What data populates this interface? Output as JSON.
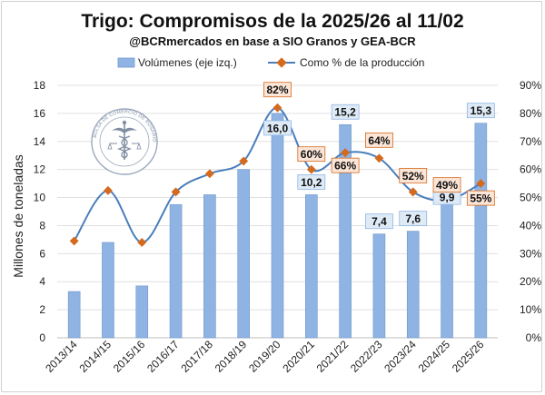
{
  "chart_data": {
    "type": "bar",
    "title": "Trigo: Compromisos de la 2025/26 al 11/02",
    "subtitle": "@BCRmercados en base a SIO Granos y GEA-BCR",
    "ylabel": "Millones de toneladas",
    "y2label": "",
    "ylim": [
      0,
      18
    ],
    "y2lim": [
      0,
      90
    ],
    "yticks": [
      "0",
      "2",
      "4",
      "6",
      "8",
      "10",
      "12",
      "14",
      "16",
      "18"
    ],
    "y2ticks": [
      "0%",
      "10%",
      "20%",
      "30%",
      "40%",
      "50%",
      "60%",
      "70%",
      "80%",
      "90%"
    ],
    "grid": true,
    "legend_position": "top",
    "categories": [
      "2013/14",
      "2014/15",
      "2015/16",
      "2016/17",
      "2017/18",
      "2018/19",
      "2019/20",
      "2020/21",
      "2021/22",
      "2022/23",
      "2023/24",
      "2024/25",
      "2025/26"
    ],
    "series": [
      {
        "name": "Volúmenes (eje izq.)",
        "kind": "bar",
        "axis": "left",
        "color": "#8fb4e3",
        "values": [
          3.3,
          6.8,
          3.7,
          9.5,
          10.2,
          12.0,
          16.0,
          10.2,
          15.2,
          7.4,
          7.6,
          9.9,
          15.3
        ],
        "labels": [
          "",
          "",
          "",
          "",
          "",
          "",
          "16,0",
          "10,2",
          "15,2",
          "7,4",
          "7,6",
          "9,9",
          "15,3"
        ]
      },
      {
        "name": "Como % de la producción",
        "kind": "line",
        "axis": "right",
        "color": "#4a7ebb",
        "marker_color": "#d46a1e",
        "values": [
          34.5,
          52.5,
          34,
          52,
          58.5,
          63,
          82,
          60,
          66,
          64,
          52,
          49,
          55
        ],
        "labels": [
          "",
          "",
          "",
          "",
          "",
          "",
          "82%",
          "60%",
          "66%",
          "64%",
          "52%",
          "49%",
          "55%"
        ]
      }
    ]
  },
  "logo": {
    "name": "bolsa-de-comercio-de-rosario-seal",
    "text": "BOLSA DE COMERCIO DE ROSARIO"
  }
}
